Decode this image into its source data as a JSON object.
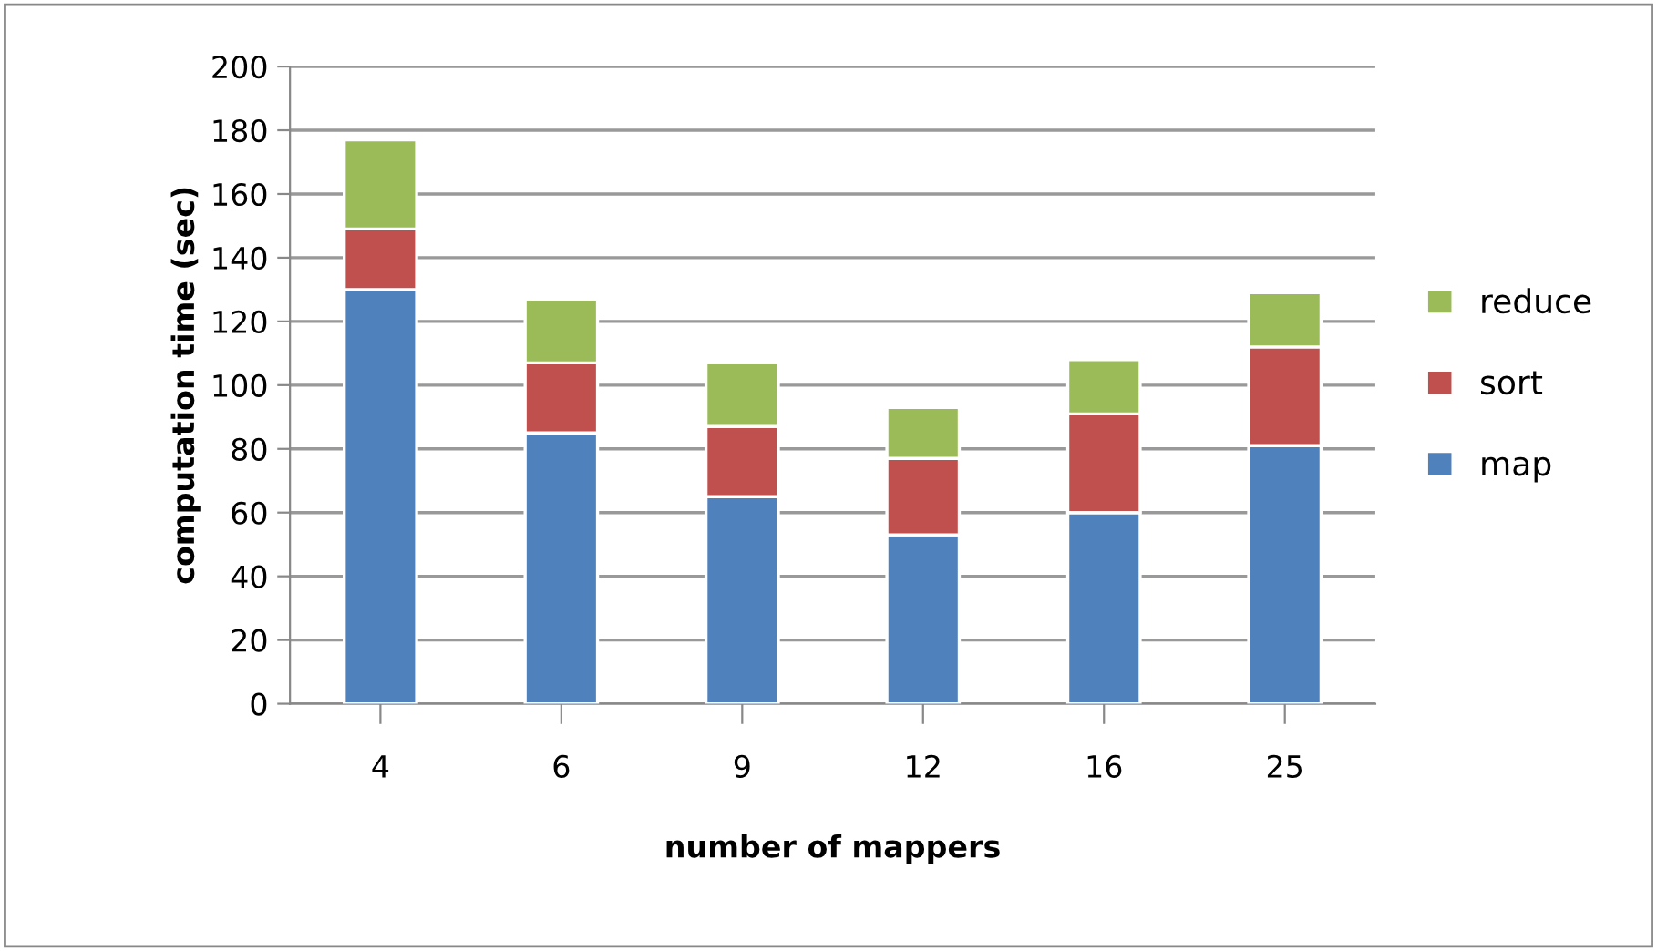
{
  "chart_data": {
    "type": "bar",
    "stacked": true,
    "xlabel": "number of mappers",
    "ylabel": "computation time (sec)",
    "categories": [
      "4",
      "6",
      "9",
      "12",
      "16",
      "25"
    ],
    "series": [
      {
        "name": "map",
        "color": "#4f81bd",
        "values": [
          130,
          85,
          65,
          53,
          60,
          81
        ]
      },
      {
        "name": "sort",
        "color": "#c0504d",
        "values": [
          19,
          22,
          22,
          24,
          31,
          31
        ]
      },
      {
        "name": "reduce",
        "color": "#9bbb59",
        "values": [
          28,
          20,
          20,
          16,
          17,
          17
        ]
      }
    ],
    "ylim": [
      0,
      200
    ],
    "yticks": [
      0,
      20,
      40,
      60,
      80,
      100,
      120,
      140,
      160,
      180,
      200
    ],
    "grid": "y",
    "legend": "right"
  }
}
